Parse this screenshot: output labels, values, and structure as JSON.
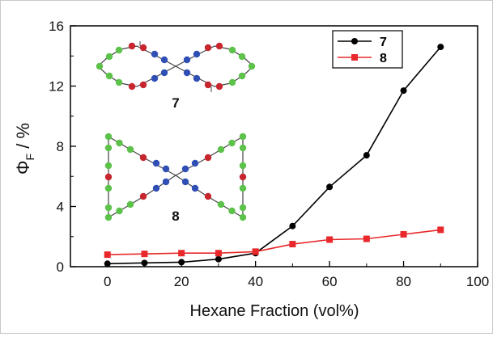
{
  "chart_data": {
    "type": "line",
    "xlabel": "Hexane Fraction (vol%)",
    "ylabel": "Φ",
    "ylabel_subscript": "F",
    "ylabel_suffix": " / %",
    "xlim": [
      -10,
      100
    ],
    "ylim": [
      0,
      16
    ],
    "xticks": [
      0,
      20,
      40,
      60,
      80,
      100
    ],
    "yticks": [
      0,
      4,
      8,
      12,
      16
    ],
    "grid": false,
    "legend_position": "top-right",
    "series": [
      {
        "name": "7",
        "color": "#000000",
        "marker": "circle",
        "x": [
          0,
          10,
          20,
          30,
          40,
          50,
          60,
          70,
          80,
          90
        ],
        "y": [
          0.2,
          0.25,
          0.3,
          0.5,
          0.9,
          2.7,
          5.3,
          7.4,
          11.7,
          14.6
        ]
      },
      {
        "name": "8",
        "color": "#e8282a",
        "marker": "square",
        "x": [
          0,
          10,
          20,
          30,
          40,
          50,
          60,
          70,
          80,
          90
        ],
        "y": [
          0.8,
          0.85,
          0.9,
          0.9,
          1.0,
          1.5,
          1.8,
          1.85,
          2.15,
          2.45
        ]
      }
    ],
    "annotations": [
      {
        "label": "7",
        "structure": "molecule-7-structure"
      },
      {
        "label": "8",
        "structure": "molecule-8-structure"
      }
    ],
    "structure_colors": {
      "blue": "#2f4fb5",
      "red": "#c8262e",
      "green": "#5cc24a",
      "bond": "#444444"
    }
  }
}
